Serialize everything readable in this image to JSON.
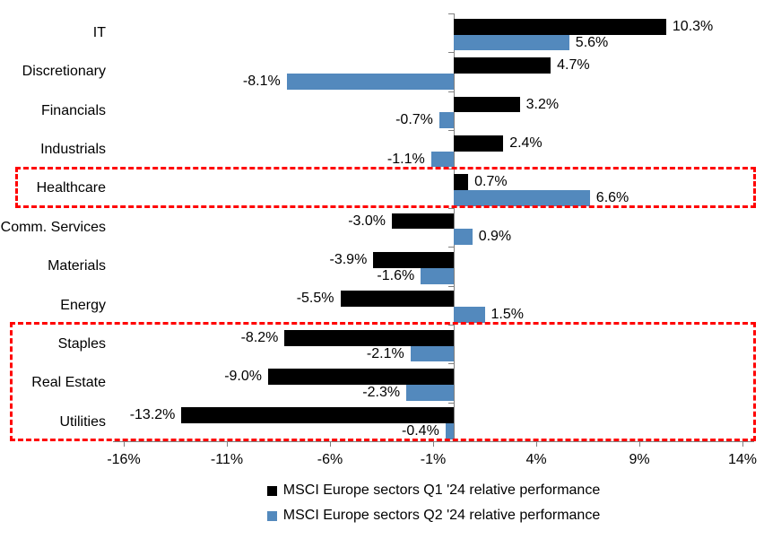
{
  "chart_data": {
    "type": "bar",
    "orientation": "horizontal",
    "title": "",
    "xlabel": "",
    "ylabel": "",
    "grid": false,
    "legend_position": "bottom-center",
    "categories": [
      "IT",
      "Discretionary",
      "Financials",
      "Industrials",
      "Healthcare",
      "Comm. Services",
      "Materials",
      "Energy",
      "Staples",
      "Real Estate",
      "Utilities"
    ],
    "series": [
      {
        "key": "q1",
        "name": "MSCI Europe sectors Q1 '24 relative performance",
        "color": "#000000",
        "values": [
          10.3,
          4.7,
          3.2,
          2.4,
          0.7,
          -3.0,
          -3.9,
          -5.5,
          -8.2,
          -9.0,
          -13.2
        ]
      },
      {
        "key": "q2",
        "name": "MSCI Europe sectors Q2 '24 relative performance",
        "color": "#5389BD",
        "values": [
          5.6,
          -8.1,
          -0.7,
          -1.1,
          6.6,
          0.9,
          -1.6,
          1.5,
          -2.1,
          -2.3,
          -0.4
        ]
      }
    ],
    "value_label_format": "0.0%",
    "x_tick_labels": [
      "-16%",
      "-11%",
      "-6%",
      "-1%",
      "4%",
      "9%",
      "14%"
    ],
    "x_tick_values": [
      -16,
      -11,
      -6,
      -1,
      4,
      9,
      14
    ],
    "xlim": [
      -16.5,
      14.6
    ],
    "annotations": [
      {
        "name": "healthcare-highlight",
        "rows": [
          "Healthcare"
        ],
        "color": "#FF0000",
        "style": "dashed-box"
      },
      {
        "name": "defensives-highlight",
        "rows": [
          "Staples",
          "Real Estate",
          "Utilities"
        ],
        "color": "#FF0000",
        "style": "dashed-box"
      }
    ],
    "colors": {
      "axis": "#808080",
      "value_label": "#000000",
      "highlight": "#FF0000"
    }
  }
}
